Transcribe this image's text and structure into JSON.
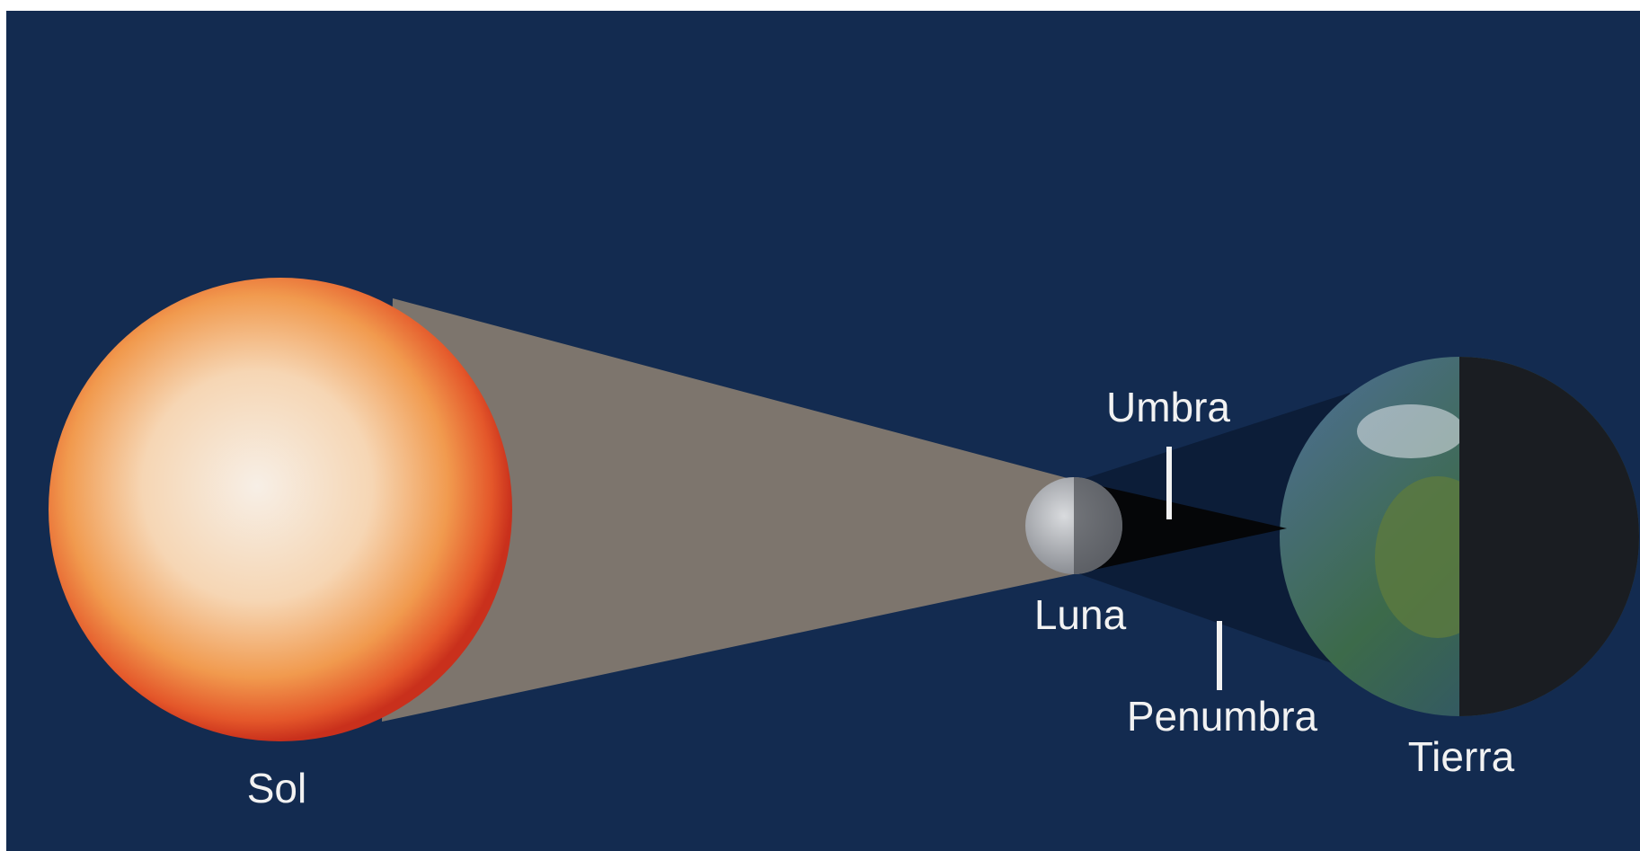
{
  "labels": {
    "sun": "Sol",
    "moon": "Luna",
    "umbra": "Umbra",
    "penumbra": "Penumbra",
    "earth": "Tierra"
  }
}
